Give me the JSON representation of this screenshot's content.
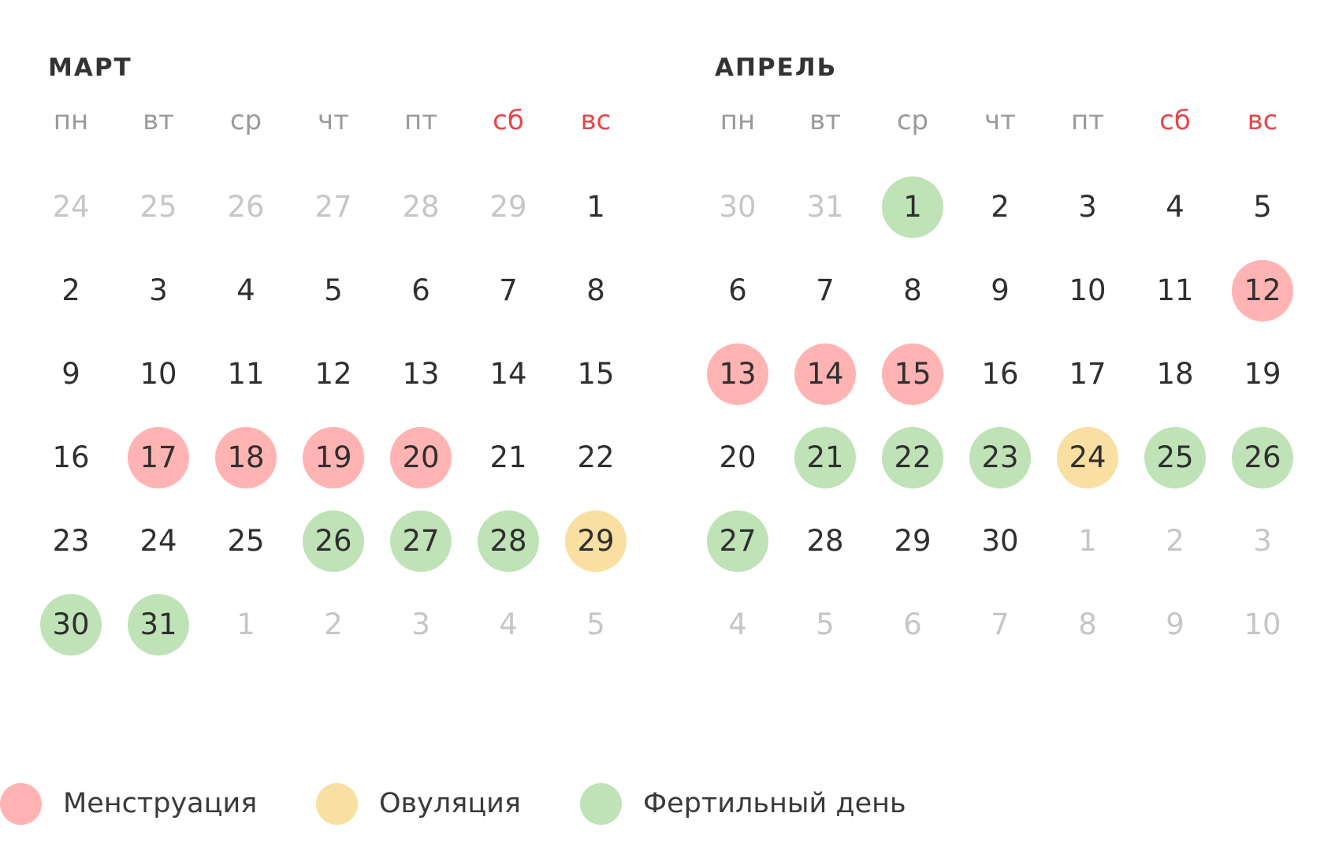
{
  "months": [
    {
      "title": "МАРТ",
      "weekdays": [
        "пн",
        "вт",
        "ср",
        "чт",
        "пт",
        "сб",
        "вс"
      ],
      "weekend_color": "#e8454a",
      "weeks": [
        [
          [
            "24",
            "other"
          ],
          [
            "25",
            "other"
          ],
          [
            "26",
            "other"
          ],
          [
            "27",
            "other"
          ],
          [
            "28",
            "other"
          ],
          [
            "29",
            "other"
          ],
          [
            "1",
            ""
          ]
        ],
        [
          [
            "2",
            ""
          ],
          [
            "3",
            ""
          ],
          [
            "4",
            ""
          ],
          [
            "5",
            ""
          ],
          [
            "6",
            ""
          ],
          [
            "7",
            ""
          ],
          [
            "8",
            ""
          ]
        ],
        [
          [
            "9",
            ""
          ],
          [
            "10",
            ""
          ],
          [
            "11",
            ""
          ],
          [
            "12",
            ""
          ],
          [
            "13",
            ""
          ],
          [
            "14",
            ""
          ],
          [
            "15",
            ""
          ]
        ],
        [
          [
            "16",
            ""
          ],
          [
            "17",
            "mens"
          ],
          [
            "18",
            "mens"
          ],
          [
            "19",
            "mens"
          ],
          [
            "20",
            "mens"
          ],
          [
            "21",
            ""
          ],
          [
            "22",
            ""
          ]
        ],
        [
          [
            "23",
            ""
          ],
          [
            "24",
            ""
          ],
          [
            "25",
            ""
          ],
          [
            "26",
            "fert"
          ],
          [
            "27",
            "fert"
          ],
          [
            "28",
            "fert"
          ],
          [
            "29",
            "ovul"
          ]
        ],
        [
          [
            "30",
            "fert"
          ],
          [
            "31",
            "fert"
          ],
          [
            "1",
            "other"
          ],
          [
            "2",
            "other"
          ],
          [
            "3",
            "other"
          ],
          [
            "4",
            "other"
          ],
          [
            "5",
            "other"
          ]
        ]
      ]
    },
    {
      "title": "АПРЕЛЬ",
      "weekdays": [
        "пн",
        "вт",
        "ср",
        "чт",
        "пт",
        "сб",
        "вс"
      ],
      "weekend_color": "#e8454a",
      "weeks": [
        [
          [
            "30",
            "other"
          ],
          [
            "31",
            "other"
          ],
          [
            "1",
            "fert"
          ],
          [
            "2",
            ""
          ],
          [
            "3",
            ""
          ],
          [
            "4",
            ""
          ],
          [
            "5",
            ""
          ]
        ],
        [
          [
            "6",
            ""
          ],
          [
            "7",
            ""
          ],
          [
            "8",
            ""
          ],
          [
            "9",
            ""
          ],
          [
            "10",
            ""
          ],
          [
            "11",
            ""
          ],
          [
            "12",
            "mens"
          ]
        ],
        [
          [
            "13",
            "mens"
          ],
          [
            "14",
            "mens"
          ],
          [
            "15",
            "mens"
          ],
          [
            "16",
            ""
          ],
          [
            "17",
            ""
          ],
          [
            "18",
            ""
          ],
          [
            "19",
            ""
          ]
        ],
        [
          [
            "20",
            ""
          ],
          [
            "21",
            "fert"
          ],
          [
            "22",
            "fert"
          ],
          [
            "23",
            "fert"
          ],
          [
            "24",
            "ovul"
          ],
          [
            "25",
            "fert"
          ],
          [
            "26",
            "fert"
          ]
        ],
        [
          [
            "27",
            "fert"
          ],
          [
            "28",
            ""
          ],
          [
            "29",
            ""
          ],
          [
            "30",
            ""
          ],
          [
            "1",
            "other"
          ],
          [
            "2",
            "other"
          ],
          [
            "3",
            "other"
          ]
        ],
        [
          [
            "4",
            "other"
          ],
          [
            "5",
            "other"
          ],
          [
            "6",
            "other"
          ],
          [
            "7",
            "other"
          ],
          [
            "8",
            "other"
          ],
          [
            "9",
            "other"
          ],
          [
            "10",
            "other"
          ]
        ]
      ]
    }
  ],
  "legend": [
    {
      "label": "Менструация",
      "type": "mens",
      "color": "#ffb3b2"
    },
    {
      "label": "Овуляция",
      "type": "ovul",
      "color": "#f9dfa1"
    },
    {
      "label": "Фертильный день",
      "type": "fert",
      "color": "#bfe2b7"
    }
  ]
}
